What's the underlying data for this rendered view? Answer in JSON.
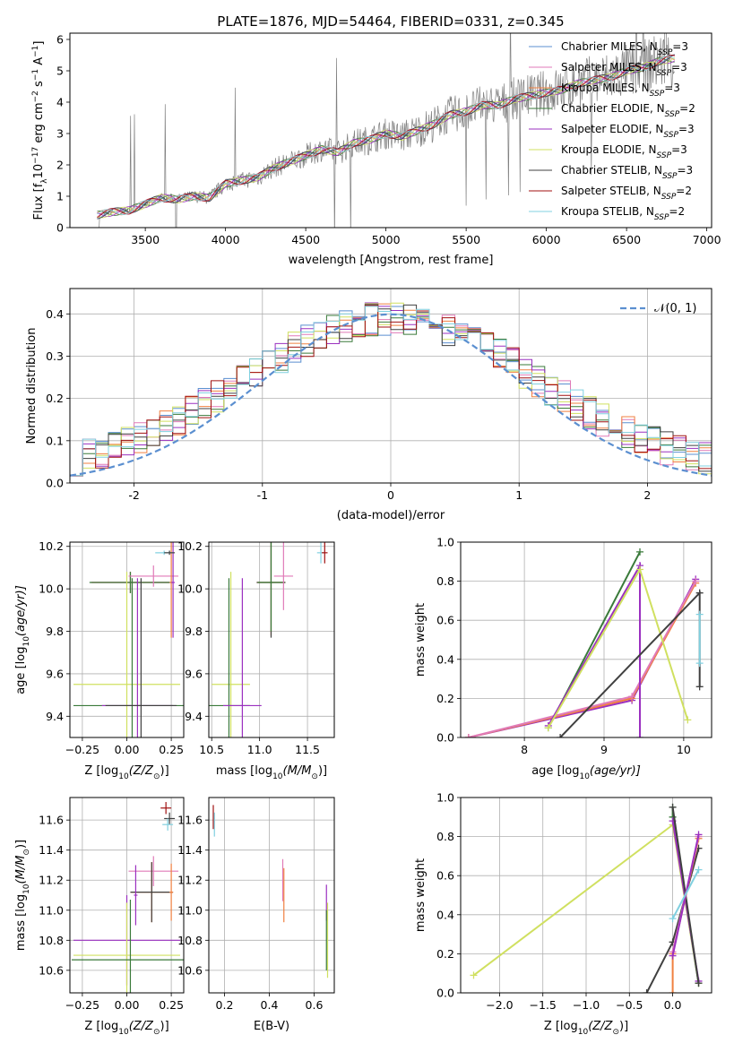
{
  "figure": {
    "title": "PLATE=1876, MJD=54464, FIBERID=0331, z=0.345"
  },
  "legend": {
    "entries": [
      {
        "label": "Chabrier MILES, N",
        "sub": "SSP",
        "tail": "=3",
        "color": "#5b8fd0"
      },
      {
        "label": "Salpeter MILES, N",
        "sub": "SSP",
        "tail": "=3",
        "color": "#e07ab8"
      },
      {
        "label": "Kroupa MILES, N",
        "sub": "SSP",
        "tail": "=3",
        "color": "#f08040"
      },
      {
        "label": "Chabrier ELODIE, N",
        "sub": "SSP",
        "tail": "=2",
        "color": "#3a7a3a"
      },
      {
        "label": "Salpeter ELODIE, N",
        "sub": "SSP",
        "tail": "=3",
        "color": "#9b30c0"
      },
      {
        "label": "Kroupa ELODIE, N",
        "sub": "SSP",
        "tail": "=3",
        "color": "#d0e060"
      },
      {
        "label": "Chabrier STELIB, N",
        "sub": "SSP",
        "tail": "=3",
        "color": "#404040"
      },
      {
        "label": "Salpeter STELIB, N",
        "sub": "SSP",
        "tail": "=2",
        "color": "#a01010"
      },
      {
        "label": "Kroupa STELIB, N",
        "sub": "SSP",
        "tail": "=2",
        "color": "#80d0e0"
      }
    ]
  },
  "chart_data": [
    {
      "id": "spectrum",
      "type": "line",
      "xlabel": "wavelength [Angstrom, rest frame]",
      "ylabel_pre": "Flux [f",
      "ylabel_sub": "λ",
      "ylabel_mid": "10",
      "ylabel_sup": "−17",
      "ylabel_post": " erg cm",
      "ylabel_sup2": "−2",
      "ylabel_post2": " s",
      "ylabel_sup3": "−1",
      "ylabel_post3": " A",
      "ylabel_sup4": "−1",
      "ylabel_end": "]",
      "xlim": [
        3030,
        7030
      ],
      "ylim": [
        0,
        6.2
      ],
      "xticks": [
        3500,
        4000,
        4500,
        5000,
        5500,
        6000,
        6500,
        7000
      ],
      "yticks": [
        0,
        1,
        2,
        3,
        4,
        5,
        6
      ],
      "data_color": "#808080",
      "model_color": "#f08040",
      "model_points": {
        "x": [
          3200,
          3300,
          3400,
          3500,
          3600,
          3700,
          3800,
          3900,
          4000,
          4100,
          4200,
          4300,
          4400,
          4500,
          4600,
          4700,
          4800,
          4900,
          5000,
          5100,
          5200,
          5300,
          5400,
          5500,
          5600,
          5700,
          5800,
          5900,
          6000,
          6100,
          6200,
          6300,
          6400,
          6500,
          6600,
          6700,
          6800
        ],
        "y": [
          0.4,
          0.5,
          0.55,
          0.75,
          0.95,
          0.9,
          1.0,
          0.95,
          1.4,
          1.5,
          1.6,
          1.9,
          2.1,
          2.3,
          2.5,
          2.4,
          2.7,
          2.8,
          3.0,
          2.9,
          3.1,
          3.3,
          3.6,
          3.7,
          3.9,
          3.9,
          4.1,
          4.2,
          4.3,
          4.4,
          4.6,
          4.7,
          4.8,
          5.0,
          5.1,
          5.3,
          5.4
        ]
      }
    },
    {
      "id": "residuals",
      "type": "line",
      "xlabel": "(data-model)/error",
      "ylabel": "Normed distribution",
      "xlim": [
        -2.5,
        2.5
      ],
      "ylim": [
        0,
        0.46
      ],
      "xticks": [
        -2,
        -1,
        0,
        1,
        2
      ],
      "yticks": [
        0.0,
        0.1,
        0.2,
        0.3,
        0.4
      ],
      "legend_label": "(0, 1)",
      "legend_prefix": "𝒩",
      "gaussian": {
        "mu": 0,
        "sigma": 1
      }
    },
    {
      "id": "z-age",
      "type": "scatter",
      "xlabel_pre": "Z [log",
      "xlabel_sub": "10",
      "xlabel_post": "(Z/Z",
      "xlabel_sub2": "⊙",
      "xlabel_end": ")]",
      "ylabel_pre": "age  [log",
      "ylabel_sub": "10",
      "ylabel_post": "(age/yr)]",
      "xlim": [
        -0.32,
        0.32
      ],
      "ylim": [
        9.3,
        10.22
      ],
      "xticks": [
        -0.25,
        0.0,
        0.25
      ],
      "xticklabels": [
        "−0.25",
        "0.00",
        "0.25"
      ],
      "yticks": [
        9.4,
        9.6,
        9.8,
        10.0,
        10.2
      ],
      "points": [
        {
          "x": 0.02,
          "y": 10.03,
          "xerr": 0.22,
          "yerr": 0.05,
          "color": "#9b30c0"
        },
        {
          "x": 0.02,
          "y": 10.03,
          "xerr": 0.22,
          "yerr": 0.05,
          "color": "#f08040"
        },
        {
          "x": 0.02,
          "y": 10.03,
          "xerr": 0.23,
          "yerr": 0.05,
          "color": "#3a7a3a"
        },
        {
          "x": 0.15,
          "y": 10.06,
          "xerr": 0.14,
          "yerr": 0.05,
          "color": "#e07ab8"
        },
        {
          "x": 0.25,
          "y": 10.03,
          "xerr": 0.01,
          "yerr": 0.26,
          "color": "#f08040"
        },
        {
          "x": 0.26,
          "y": 10.03,
          "xerr": 0.01,
          "yerr": 0.26,
          "color": "#9b30c0"
        },
        {
          "x": 0.21,
          "y": 10.17,
          "xerr": 0.05,
          "yerr": 0.01,
          "color": "#80d0e0"
        },
        {
          "x": 0.24,
          "y": 10.17,
          "xerr": 0.03,
          "yerr": 0.01,
          "color": "#404040"
        },
        {
          "x": 0.0,
          "y": 9.55,
          "xerr": 0.3,
          "yerr": 0.53,
          "color": "#d0e060"
        },
        {
          "x": 0.03,
          "y": 9.45,
          "xerr": 0.33,
          "yerr": 0.6,
          "color": "#3a7a3a"
        },
        {
          "x": 0.06,
          "y": 9.45,
          "xerr": 0.2,
          "yerr": 0.6,
          "color": "#9b30c0"
        },
        {
          "x": 0.08,
          "y": 9.45,
          "xerr": 0.2,
          "yerr": 0.6,
          "color": "#404040"
        }
      ]
    },
    {
      "id": "mass-age",
      "type": "scatter",
      "xlabel_pre": "mass [log",
      "xlabel_sub": "10",
      "xlabel_post": "(M/M",
      "xlabel_sub2": "⊙",
      "xlabel_end": ")]",
      "xlim": [
        10.47,
        11.78
      ],
      "ylim": [
        9.3,
        10.22
      ],
      "xticks": [
        10.5,
        11.0,
        11.5
      ],
      "xticklabels": [
        "10.5",
        "11.0",
        "11.5"
      ],
      "yticks": [
        9.4,
        9.6,
        9.8,
        10.0,
        10.2
      ],
      "points": [
        {
          "x": 11.12,
          "y": 10.03,
          "xerr": 0.15,
          "yerr": 0.25,
          "color": "#f08040"
        },
        {
          "x": 11.12,
          "y": 10.03,
          "xerr": 0.15,
          "yerr": 0.26,
          "color": "#404040"
        },
        {
          "x": 11.12,
          "y": 10.03,
          "xerr": 0.14,
          "yerr": 0.23,
          "color": "#3a7a3a"
        },
        {
          "x": 11.25,
          "y": 10.06,
          "xerr": 0.1,
          "yerr": 0.16,
          "color": "#e07ab8"
        },
        {
          "x": 11.64,
          "y": 10.17,
          "xerr": 0.04,
          "yerr": 0.05,
          "color": "#80d0e0"
        },
        {
          "x": 11.68,
          "y": 10.17,
          "xerr": 0.03,
          "yerr": 0.05,
          "color": "#a01010"
        },
        {
          "x": 10.7,
          "y": 9.55,
          "xerr": 0.2,
          "yerr": 0.53,
          "color": "#d0e060"
        },
        {
          "x": 10.68,
          "y": 9.45,
          "xerr": 0.22,
          "yerr": 0.6,
          "color": "#3a7a3a"
        },
        {
          "x": 10.82,
          "y": 9.45,
          "xerr": 0.2,
          "yerr": 0.6,
          "color": "#9b30c0"
        }
      ]
    },
    {
      "id": "age-weight",
      "type": "line",
      "xlabel_pre": "age  [log",
      "xlabel_sub": "10",
      "xlabel_post": "(age/yr)]",
      "ylabel": "mass weight",
      "xlim": [
        7.2,
        10.35
      ],
      "ylim": [
        0,
        1.0
      ],
      "xticks": [
        8,
        9,
        10
      ],
      "yticks": [
        0.0,
        0.2,
        0.4,
        0.6,
        0.8,
        1.0
      ],
      "series": [
        {
          "color": "#9b30c0",
          "x": [
            7.3,
            9.35,
            10.15
          ],
          "y": [
            0.0,
            0.19,
            0.81
          ]
        },
        {
          "color": "#f08040",
          "x": [
            7.3,
            9.35,
            10.15
          ],
          "y": [
            0.0,
            0.2,
            0.79
          ]
        },
        {
          "color": "#e07ab8",
          "x": [
            7.3,
            9.35,
            10.15
          ],
          "y": [
            0.0,
            0.21,
            0.8
          ]
        },
        {
          "color": "#3a7a3a",
          "x": [
            8.3,
            9.45
          ],
          "y": [
            0.05,
            0.95
          ]
        },
        {
          "color": "#9b30c0",
          "x": [
            8.3,
            9.45,
            9.45
          ],
          "y": [
            0.06,
            0.88,
            0.0
          ]
        },
        {
          "color": "#d0e060",
          "x": [
            8.3,
            9.45,
            10.05
          ],
          "y": [
            0.05,
            0.86,
            0.09
          ]
        },
        {
          "color": "#404040",
          "x": [
            8.45,
            10.2,
            10.2
          ],
          "y": [
            0.0,
            0.74,
            0.26
          ]
        },
        {
          "color": "#80d0e0",
          "x": [
            10.2,
            10.2
          ],
          "y": [
            0.38,
            0.63
          ]
        }
      ]
    },
    {
      "id": "z-mass",
      "type": "scatter",
      "xlabel_pre": "Z [log",
      "xlabel_sub": "10",
      "xlabel_post": "(Z/Z",
      "xlabel_sub2": "⊙",
      "xlabel_end": ")]",
      "ylabel_pre": "mass [log",
      "ylabel_sub": "10",
      "ylabel_post": "(M/M",
      "ylabel_sub2": "⊙",
      "ylabel_end": ")]",
      "xlim": [
        -0.32,
        0.32
      ],
      "ylim": [
        10.45,
        11.75
      ],
      "xticks": [
        -0.25,
        0.0,
        0.25
      ],
      "xticklabels": [
        "−0.25",
        "0.00",
        "0.25"
      ],
      "yticks": [
        10.6,
        10.8,
        11.0,
        11.2,
        11.4,
        11.6
      ],
      "points": [
        {
          "x": 0.22,
          "y": 11.68,
          "xerr": 0.03,
          "yerr": 0.04,
          "color": "#a01010"
        },
        {
          "x": 0.24,
          "y": 11.61,
          "xerr": 0.03,
          "yerr": 0.04,
          "color": "#404040"
        },
        {
          "x": 0.23,
          "y": 11.57,
          "xerr": 0.03,
          "yerr": 0.04,
          "color": "#80d0e0"
        },
        {
          "x": 0.15,
          "y": 11.26,
          "xerr": 0.14,
          "yerr": 0.1,
          "color": "#e07ab8"
        },
        {
          "x": 0.14,
          "y": 11.12,
          "xerr": 0.12,
          "yerr": 0.2,
          "color": "#f08040"
        },
        {
          "x": 0.14,
          "y": 11.12,
          "xerr": 0.12,
          "yerr": 0.2,
          "color": "#404040"
        },
        {
          "x": 0.25,
          "y": 11.12,
          "xerr": 0.01,
          "yerr": 0.19,
          "color": "#f08040"
        },
        {
          "x": 0.05,
          "y": 11.1,
          "xerr": 0.01,
          "yerr": 0.2,
          "color": "#9b30c0"
        },
        {
          "x": 0.0,
          "y": 10.8,
          "xerr": 0.3,
          "yerr": 0.3,
          "color": "#9b30c0"
        },
        {
          "x": 0.0,
          "y": 10.7,
          "xerr": 0.3,
          "yerr": 0.35,
          "color": "#d0e060"
        },
        {
          "x": 0.02,
          "y": 10.67,
          "xerr": 0.33,
          "yerr": 0.4,
          "color": "#3a7a3a"
        }
      ]
    },
    {
      "id": "ebv-mass",
      "type": "scatter",
      "xlabel": "E(B-V)",
      "xlim": [
        0.13,
        0.69
      ],
      "ylim": [
        10.45,
        11.75
      ],
      "xticks": [
        0.2,
        0.4,
        0.6
      ],
      "xticklabels": [
        "0.2",
        "0.4",
        "0.6"
      ],
      "yticks": [
        10.6,
        10.8,
        11.0,
        11.2,
        11.4,
        11.6
      ],
      "points": [
        {
          "x": 0.15,
          "y": 11.62,
          "xerr": 0,
          "yerr": 0.08,
          "color": "#a01010"
        },
        {
          "x": 0.155,
          "y": 11.57,
          "xerr": 0,
          "yerr": 0.08,
          "color": "#80d0e0"
        },
        {
          "x": 0.46,
          "y": 11.2,
          "xerr": 0,
          "yerr": 0.14,
          "color": "#e07ab8"
        },
        {
          "x": 0.465,
          "y": 11.1,
          "xerr": 0,
          "yerr": 0.18,
          "color": "#f08040"
        },
        {
          "x": 0.655,
          "y": 11.05,
          "xerr": 0,
          "yerr": 0.12,
          "color": "#9b30c0"
        },
        {
          "x": 0.66,
          "y": 10.8,
          "xerr": 0,
          "yerr": 0.25,
          "color": "#d0e060"
        },
        {
          "x": 0.655,
          "y": 10.8,
          "xerr": 0,
          "yerr": 0.2,
          "color": "#3a7a3a"
        }
      ]
    },
    {
      "id": "z-weight",
      "type": "line",
      "xlabel_pre": "Z [log",
      "xlabel_sub": "10",
      "xlabel_post": "(Z/Z",
      "xlabel_sub2": "⊙",
      "xlabel_end": ")]",
      "ylabel": "mass weight",
      "xlim": [
        -2.45,
        0.45
      ],
      "ylim": [
        0,
        1.0
      ],
      "xticks": [
        -2.0,
        -1.5,
        -1.0,
        -0.5,
        0.0
      ],
      "xticklabels": [
        "−2.0",
        "−1.5",
        "−1.0",
        "−0.5",
        "0.0"
      ],
      "yticks": [
        0.0,
        0.2,
        0.4,
        0.6,
        0.8,
        1.0
      ],
      "series": [
        {
          "color": "#d0e060",
          "x": [
            -2.3,
            0.0,
            0.3
          ],
          "y": [
            0.09,
            0.86,
            0.05
          ]
        },
        {
          "color": "#3a7a3a",
          "x": [
            0.0,
            0.0,
            0.3
          ],
          "y": [
            0.95,
            0.9,
            0.05
          ]
        },
        {
          "color": "#9b30c0",
          "x": [
            0.0,
            0.3
          ],
          "y": [
            0.88,
            0.06
          ]
        },
        {
          "color": "#404040",
          "x": [
            -0.3,
            0.0,
            0.3
          ],
          "y": [
            0.0,
            0.26,
            0.74
          ]
        },
        {
          "color": "#404040",
          "x": [
            0.0,
            0.3
          ],
          "y": [
            0.95,
            0.05
          ]
        },
        {
          "color": "#f08040",
          "x": [
            0.0,
            0.0,
            0.3
          ],
          "y": [
            0.0,
            0.2,
            0.79
          ]
        },
        {
          "color": "#e07ab8",
          "x": [
            0.0,
            0.3
          ],
          "y": [
            0.21,
            0.8
          ]
        },
        {
          "color": "#9b30c0",
          "x": [
            0.0,
            0.3
          ],
          "y": [
            0.19,
            0.81
          ]
        },
        {
          "color": "#80d0e0",
          "x": [
            0.0,
            0.3
          ],
          "y": [
            0.38,
            0.63
          ]
        }
      ]
    }
  ]
}
